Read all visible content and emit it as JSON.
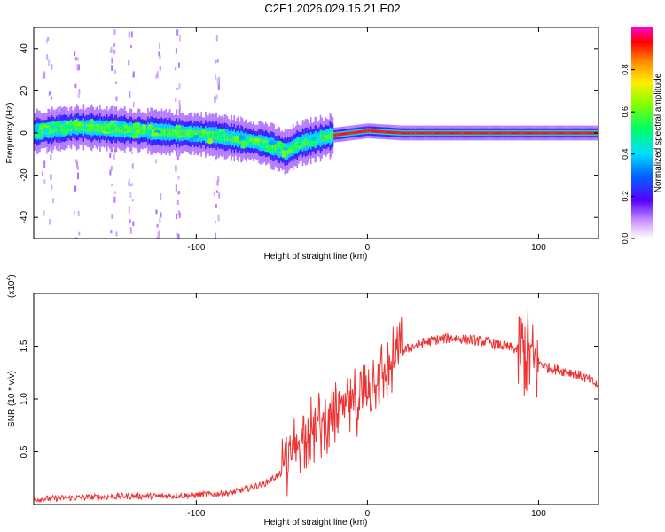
{
  "title": "C2E1.2026.029.15.21.E02",
  "chart_data": [
    {
      "type": "heatmap",
      "name": "spectrogram",
      "xlabel": "Height of straight line (km)",
      "ylabel": "Frequency (Hz)",
      "xlim": [
        -195,
        135
      ],
      "ylim": [
        -50,
        50
      ],
      "xticks": [
        -100,
        0,
        100
      ],
      "yticks": [
        -40,
        -20,
        0,
        20,
        40
      ],
      "colorbar": {
        "label": "Normalized spectral amplitude",
        "range": [
          0,
          1
        ],
        "ticks": [
          "0.0",
          "0.2",
          "0.4",
          "0.6",
          "0.8"
        ],
        "tick_values": [
          0.0,
          0.2,
          0.4,
          0.6,
          0.8
        ]
      },
      "trace_center_hz": [
        {
          "x": -190,
          "y": 1
        },
        {
          "x": -170,
          "y": 3
        },
        {
          "x": -150,
          "y": 2
        },
        {
          "x": -130,
          "y": 1
        },
        {
          "x": -110,
          "y": 0
        },
        {
          "x": -90,
          "y": -1
        },
        {
          "x": -75,
          "y": -3
        },
        {
          "x": -60,
          "y": -5
        },
        {
          "x": -48,
          "y": -9
        },
        {
          "x": -40,
          "y": -5
        },
        {
          "x": -30,
          "y": -3
        },
        {
          "x": -20,
          "y": -1
        },
        {
          "x": 0,
          "y": 1
        },
        {
          "x": 20,
          "y": 0
        },
        {
          "x": 60,
          "y": 0
        },
        {
          "x": 92,
          "y": 0
        },
        {
          "x": 135,
          "y": 0
        }
      ]
    },
    {
      "type": "line",
      "name": "snr",
      "xlabel": "Height of straight line (km)",
      "ylabel": "SNR (10 * v/v)",
      "yscale_note": "(x10",
      "yscale_exp": "4",
      "xlim": [
        -195,
        135
      ],
      "ylim": [
        0,
        2.0
      ],
      "xticks": [
        -100,
        0,
        100
      ],
      "yticks": [
        "0.5",
        "1.0",
        "1.5"
      ],
      "ytick_values": [
        0.5,
        1.0,
        1.5
      ],
      "color": "#ee3333",
      "series": [
        {
          "name": "SNR",
          "x": [
            -195,
            -180,
            -160,
            -140,
            -120,
            -100,
            -90,
            -80,
            -70,
            -60,
            -50,
            -45,
            -40,
            -35,
            -30,
            -25,
            -20,
            -15,
            -10,
            -5,
            0,
            5,
            10,
            15,
            20,
            30,
            40,
            50,
            60,
            70,
            80,
            85,
            90,
            95,
            97,
            100,
            105,
            110,
            120,
            130,
            135
          ],
          "y": [
            0.05,
            0.06,
            0.07,
            0.08,
            0.08,
            0.09,
            0.1,
            0.11,
            0.15,
            0.2,
            0.3,
            0.45,
            0.6,
            0.7,
            0.7,
            0.8,
            0.8,
            0.9,
            0.95,
            1.0,
            1.1,
            1.2,
            1.25,
            1.35,
            1.45,
            1.52,
            1.56,
            1.58,
            1.56,
            1.54,
            1.5,
            1.48,
            1.45,
            1.4,
            1.3,
            1.35,
            1.3,
            1.28,
            1.25,
            1.18,
            1.12
          ]
        }
      ]
    }
  ]
}
